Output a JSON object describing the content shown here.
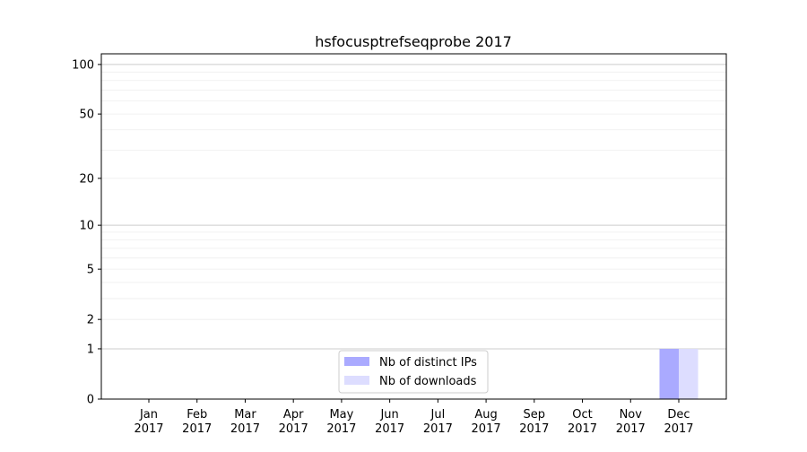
{
  "chart_data": {
    "type": "bar",
    "title": "hsfocusptrefseqprobe 2017",
    "xlabel": "",
    "ylabel": "",
    "y_scale": "log(1+y)",
    "ylim": [
      0,
      116
    ],
    "y_ticks": [
      0,
      1,
      2,
      5,
      10,
      20,
      50,
      100
    ],
    "grid": true,
    "legend_placement": "bottom-center",
    "categories": [
      "Jan\n2017",
      "Feb\n2017",
      "Mar\n2017",
      "Apr\n2017",
      "May\n2017",
      "Jun\n2017",
      "Jul\n2017",
      "Aug\n2017",
      "Sep\n2017",
      "Oct\n2017",
      "Nov\n2017",
      "Dec\n2017"
    ],
    "series": [
      {
        "name": "Nb of distinct IPs",
        "color": "#aaaaff",
        "values": [
          0,
          0,
          0,
          0,
          0,
          0,
          0,
          0,
          0,
          0,
          0,
          1
        ]
      },
      {
        "name": "Nb of downloads",
        "color": "#ddddff",
        "values": [
          0,
          0,
          0,
          0,
          0,
          0,
          0,
          0,
          0,
          0,
          0,
          1
        ]
      }
    ]
  }
}
